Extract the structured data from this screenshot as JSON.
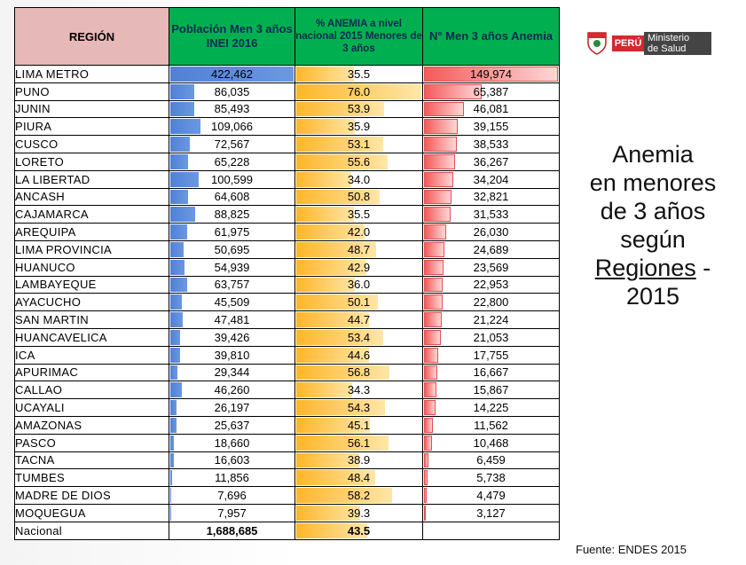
{
  "table": {
    "headers": {
      "region": "REGIÓN",
      "pob": "Población Men 3 años INEI 2016",
      "anem": "% ANEMIA a nivel nacional 2015 Menores de 3 años",
      "men": "N° Men 3 años Anemia"
    },
    "rows": [
      {
        "region": "LIMA METRO",
        "pob": "422,462",
        "anem": "35.5",
        "men": "149,974",
        "pob_n": 422462,
        "anem_n": 35.5,
        "men_n": 149974
      },
      {
        "region": "PUNO",
        "pob": "86,035",
        "anem": "76.0",
        "men": "65,387",
        "pob_n": 86035,
        "anem_n": 76.0,
        "men_n": 65387
      },
      {
        "region": "JUNIN",
        "pob": "85,493",
        "anem": "53.9",
        "men": "46,081",
        "pob_n": 85493,
        "anem_n": 53.9,
        "men_n": 46081
      },
      {
        "region": "PIURA",
        "pob": "109,066",
        "anem": "35.9",
        "men": "39,155",
        "pob_n": 109066,
        "anem_n": 35.9,
        "men_n": 39155
      },
      {
        "region": "CUSCO",
        "pob": "72,567",
        "anem": "53.1",
        "men": "38,533",
        "pob_n": 72567,
        "anem_n": 53.1,
        "men_n": 38533
      },
      {
        "region": "LORETO",
        "pob": "65,228",
        "anem": "55.6",
        "men": "36,267",
        "pob_n": 65228,
        "anem_n": 55.6,
        "men_n": 36267
      },
      {
        "region": "LA LIBERTAD",
        "pob": "100,599",
        "anem": "34.0",
        "men": "34,204",
        "pob_n": 100599,
        "anem_n": 34.0,
        "men_n": 34204
      },
      {
        "region": "ANCASH",
        "pob": "64,608",
        "anem": "50.8",
        "men": "32,821",
        "pob_n": 64608,
        "anem_n": 50.8,
        "men_n": 32821
      },
      {
        "region": "CAJAMARCA",
        "pob": "88,825",
        "anem": "35.5",
        "men": "31,533",
        "pob_n": 88825,
        "anem_n": 35.5,
        "men_n": 31533
      },
      {
        "region": "AREQUIPA",
        "pob": "61,975",
        "anem": "42.0",
        "men": "26,030",
        "pob_n": 61975,
        "anem_n": 42.0,
        "men_n": 26030
      },
      {
        "region": "LIMA PROVINCIA",
        "pob": "50,695",
        "anem": "48.7",
        "men": "24,689",
        "pob_n": 50695,
        "anem_n": 48.7,
        "men_n": 24689
      },
      {
        "region": "HUANUCO",
        "pob": "54,939",
        "anem": "42.9",
        "men": "23,569",
        "pob_n": 54939,
        "anem_n": 42.9,
        "men_n": 23569
      },
      {
        "region": "LAMBAYEQUE",
        "pob": "63,757",
        "anem": "36.0",
        "men": "22,953",
        "pob_n": 63757,
        "anem_n": 36.0,
        "men_n": 22953
      },
      {
        "region": "AYACUCHO",
        "pob": "45,509",
        "anem": "50.1",
        "men": "22,800",
        "pob_n": 45509,
        "anem_n": 50.1,
        "men_n": 22800
      },
      {
        "region": "SAN MARTIN",
        "pob": "47,481",
        "anem": "44.7",
        "men": "21,224",
        "pob_n": 47481,
        "anem_n": 44.7,
        "men_n": 21224
      },
      {
        "region": "HUANCAVELICA",
        "pob": "39,426",
        "anem": "53.4",
        "men": "21,053",
        "pob_n": 39426,
        "anem_n": 53.4,
        "men_n": 21053
      },
      {
        "region": "ICA",
        "pob": "39,810",
        "anem": "44.6",
        "men": "17,755",
        "pob_n": 39810,
        "anem_n": 44.6,
        "men_n": 17755
      },
      {
        "region": "APURIMAC",
        "pob": "29,344",
        "anem": "56.8",
        "men": "16,667",
        "pob_n": 29344,
        "anem_n": 56.8,
        "men_n": 16667
      },
      {
        "region": "CALLAO",
        "pob": "46,260",
        "anem": "34.3",
        "men": "15,867",
        "pob_n": 46260,
        "anem_n": 34.3,
        "men_n": 15867
      },
      {
        "region": "UCAYALI",
        "pob": "26,197",
        "anem": "54.3",
        "men": "14,225",
        "pob_n": 26197,
        "anem_n": 54.3,
        "men_n": 14225
      },
      {
        "region": "AMAZONAS",
        "pob": "25,637",
        "anem": "45.1",
        "men": "11,562",
        "pob_n": 25637,
        "anem_n": 45.1,
        "men_n": 11562
      },
      {
        "region": "PASCO",
        "pob": "18,660",
        "anem": "56.1",
        "men": "10,468",
        "pob_n": 18660,
        "anem_n": 56.1,
        "men_n": 10468
      },
      {
        "region": "TACNA",
        "pob": "16,603",
        "anem": "38.9",
        "men": "6,459",
        "pob_n": 16603,
        "anem_n": 38.9,
        "men_n": 6459
      },
      {
        "region": "TUMBES",
        "pob": "11,856",
        "anem": "48.4",
        "men": "5,738",
        "pob_n": 11856,
        "anem_n": 48.4,
        "men_n": 5738
      },
      {
        "region": "MADRE DE DIOS",
        "pob": "7,696",
        "anem": "58.2",
        "men": "4,479",
        "pob_n": 7696,
        "anem_n": 58.2,
        "men_n": 4479
      },
      {
        "region": "MOQUEGUA",
        "pob": "7,957",
        "anem": "39.3",
        "men": "3,127",
        "pob_n": 7957,
        "anem_n": 39.3,
        "men_n": 3127
      }
    ],
    "total": {
      "region": "Nacional",
      "pob": "1,688,685",
      "anem": "43.5",
      "men": "",
      "anem_n": 43.5
    },
    "scale": {
      "pob_max": 422462,
      "anem_max": 76.0,
      "men_max": 149974
    }
  },
  "logo": {
    "country": "PERÚ",
    "ministry_line1": "Ministerio",
    "ministry_line2": "de Salud"
  },
  "title": {
    "line1": "Anemia",
    "line2": "en menores",
    "line3": "de 3 años",
    "line4": "según",
    "line5_link": "Regiones",
    "line5_tail": " -",
    "line6": "2015"
  },
  "source": "Fuente: ENDES 2015",
  "colors": {
    "header_green": "#00b050",
    "header_pink": "#e6b8b7",
    "bar_blue": "#4f81d6",
    "bar_orange": "#ffb629",
    "bar_red": "#f35a5a",
    "brand_red": "#d7282f"
  }
}
